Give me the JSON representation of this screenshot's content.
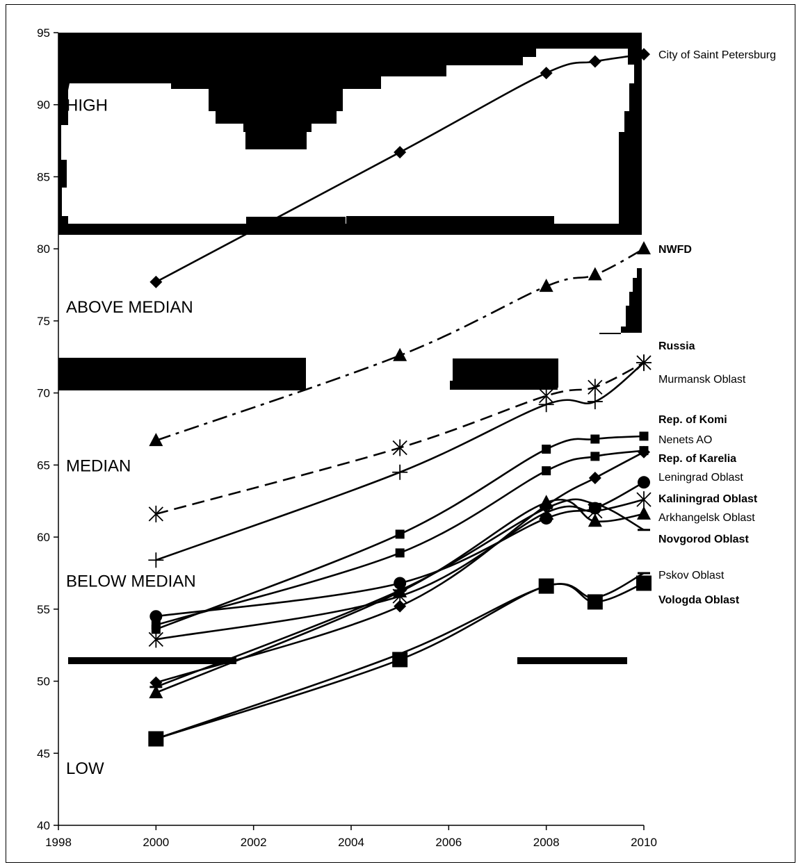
{
  "chart_data": {
    "type": "line",
    "x": [
      2000,
      2005,
      2008,
      2009,
      2010
    ],
    "xlim": [
      1998,
      2010
    ],
    "ylim": [
      40,
      95
    ],
    "xticks": [
      "1998",
      "2000",
      "2002",
      "2004",
      "2006",
      "2008",
      "2010"
    ],
    "yticks": [
      "40",
      "45",
      "50",
      "55",
      "60",
      "65",
      "70",
      "75",
      "80",
      "85",
      "90",
      "95"
    ],
    "grid": false,
    "zones": [
      {
        "label": "HIGH"
      },
      {
        "label": "ABOVE MEDIAN"
      },
      {
        "label": "MEDIAN"
      },
      {
        "label": "BELOW MEDIAN"
      },
      {
        "label": "LOW"
      }
    ],
    "series": [
      {
        "name": "City of Saint Petersburg",
        "bold": false,
        "marker": "diamond",
        "dash": "solid",
        "values": [
          77.7,
          86.7,
          92.2,
          93.0,
          93.5
        ]
      },
      {
        "name": "NWFD",
        "bold": true,
        "marker": "triangle",
        "dash": "dashdot",
        "values": [
          66.7,
          72.6,
          77.4,
          78.2,
          80.0
        ]
      },
      {
        "name": "Russia",
        "bold": true,
        "marker": "asterisk",
        "dash": "dashed",
        "values": [
          61.6,
          66.2,
          69.8,
          70.4,
          72.1
        ]
      },
      {
        "name": "Murmansk Oblast",
        "bold": false,
        "marker": "plus",
        "dash": "solid",
        "values": [
          58.4,
          64.5,
          69.2,
          69.4,
          72.1
        ]
      },
      {
        "name": "Rep. of Komi",
        "bold": true,
        "marker": "square-small",
        "dash": "solid",
        "values": [
          53.6,
          60.2,
          66.1,
          66.8,
          67.0
        ]
      },
      {
        "name": "Nenets AO",
        "bold": false,
        "marker": "square-small",
        "dash": "solid",
        "values": [
          53.9,
          58.9,
          64.6,
          65.6,
          66.0
        ]
      },
      {
        "name": "Rep. of Karelia",
        "bold": true,
        "marker": "diamond",
        "dash": "solid",
        "values": [
          49.9,
          55.2,
          62.2,
          64.1,
          65.9
        ]
      },
      {
        "name": "Leningrad Oblast",
        "bold": false,
        "marker": "circle",
        "dash": "solid",
        "values": [
          54.5,
          56.8,
          61.3,
          62.0,
          63.8
        ]
      },
      {
        "name": "Kaliningrad Oblast",
        "bold": true,
        "marker": "asterisk",
        "dash": "solid",
        "values": [
          52.9,
          55.9,
          61.7,
          61.8,
          62.6
        ]
      },
      {
        "name": "Arkhangelsk Oblast",
        "bold": false,
        "marker": "triangle",
        "dash": "solid",
        "values": [
          49.2,
          56.2,
          62.4,
          61.1,
          61.6
        ]
      },
      {
        "name": "Novgorod Oblast",
        "bold": true,
        "marker": "dash",
        "dash": "solid",
        "values": [
          49.6,
          56.3,
          62.0,
          62.3,
          60.5
        ]
      },
      {
        "name": "Pskov Oblast",
        "bold": false,
        "marker": "dash",
        "dash": "solid",
        "values": [
          46.0,
          51.9,
          56.6,
          55.8,
          57.5
        ]
      },
      {
        "name": "Vologda Oblast",
        "bold": true,
        "marker": "square-large",
        "dash": "solid",
        "values": [
          46.0,
          51.5,
          56.6,
          55.5,
          56.8
        ]
      }
    ]
  }
}
